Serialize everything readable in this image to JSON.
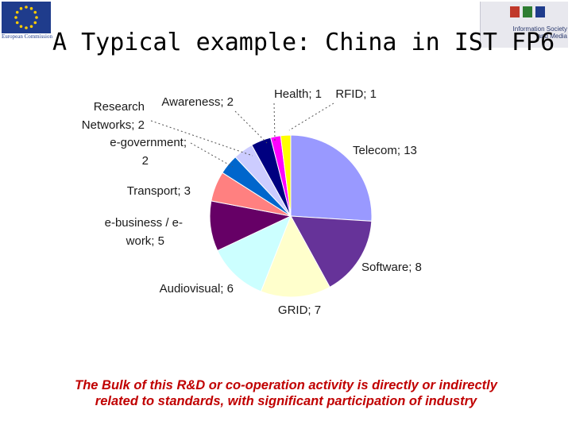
{
  "header": {
    "title": "A Typical example: China in IST FP6",
    "ec_logo_text": "European Commission",
    "isam_logo_text": "Information Society\nand Media",
    "isam_colors": [
      "#c0392b",
      "#2e7d32",
      "#1f3c8c"
    ]
  },
  "chart_data": {
    "type": "pie",
    "title": "",
    "slices": [
      {
        "name": "Telecom",
        "value": 13,
        "label": "Telecom; 13",
        "color": "#9999ff"
      },
      {
        "name": "Software",
        "value": 8,
        "label": "Software; 8",
        "color": "#663399"
      },
      {
        "name": "GRID",
        "value": 7,
        "label": "GRID; 7",
        "color": "#ffffcc"
      },
      {
        "name": "Audiovisual",
        "value": 6,
        "label": "Audiovisual; 6",
        "color": "#ccffff"
      },
      {
        "name": "e-business / e-work",
        "value": 5,
        "label": "e-business / e-\nwork; 5",
        "color": "#660066"
      },
      {
        "name": "Transport",
        "value": 3,
        "label": "Transport; 3",
        "color": "#ff8080"
      },
      {
        "name": "e-government",
        "value": 2,
        "label": "e-government;\n2",
        "color": "#0066cc"
      },
      {
        "name": "Research Networks",
        "value": 2,
        "label": "Research\nNetworks; 2",
        "color": "#ccccff"
      },
      {
        "name": "Awareness",
        "value": 2,
        "label": "Awareness; 2",
        "color": "#000080"
      },
      {
        "name": "Health",
        "value": 1,
        "label": "Health; 1",
        "color": "#ff00ff"
      },
      {
        "name": "RFID",
        "value": 1,
        "label": "RFID; 1",
        "color": "#ffff00"
      }
    ],
    "start_angle_deg": 0,
    "direction": "clockwise",
    "legend": "none"
  },
  "caption": {
    "line1": "The Bulk of this R&D or co-operation activity is directly or indirectly",
    "line2": "related to standards, with significant participation of industry"
  }
}
